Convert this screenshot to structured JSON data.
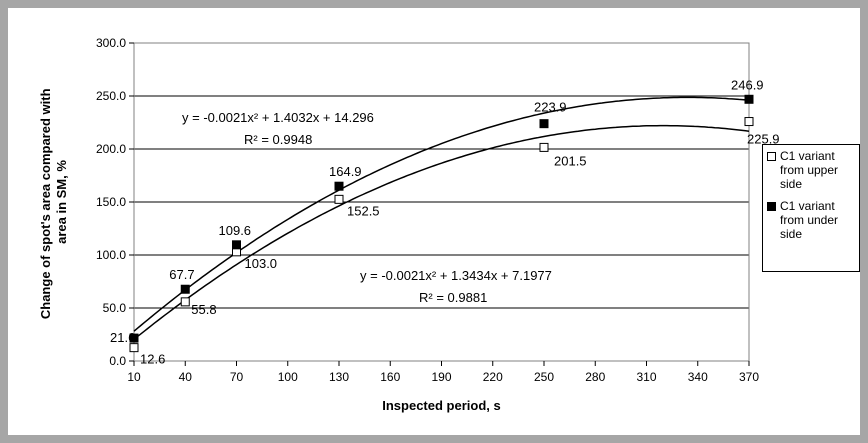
{
  "chart_data": {
    "type": "scatter",
    "xlabel": "Inspected period, s",
    "ylabel": "Change of spot's area compared with area in SM, %",
    "xlim": [
      10,
      370
    ],
    "ylim": [
      0,
      300
    ],
    "x_ticks": [
      "10",
      "40",
      "70",
      "100",
      "130",
      "160",
      "190",
      "220",
      "250",
      "280",
      "310",
      "340",
      "370"
    ],
    "y_ticks": [
      "0.0",
      "50.0",
      "100.0",
      "150.0",
      "200.0",
      "250.0",
      "300.0"
    ],
    "grid": "horizontal",
    "legend_position": "right",
    "series": [
      {
        "name": "C1 variant from upper side",
        "marker": "open-square",
        "color": "#000000",
        "x": [
          10,
          40,
          70,
          130,
          250,
          370
        ],
        "y": [
          12.6,
          55.8,
          103.0,
          152.5,
          201.5,
          225.9
        ],
        "labels": [
          "12.6",
          "55.8",
          "103.0",
          "152.5",
          "201.5",
          "225.9"
        ],
        "trendline": {
          "a": -0.0021,
          "b": 1.3434,
          "c": 7.1977,
          "equation": "y = -0.0021x² + 1.3434x + 7.1977",
          "r2": "R² = 0.9881"
        }
      },
      {
        "name": "C1 variant from under side",
        "marker": "filled-square",
        "color": "#000000",
        "x": [
          10,
          40,
          70,
          130,
          250,
          370
        ],
        "y": [
          21.6,
          67.7,
          109.6,
          164.9,
          223.9,
          246.9
        ],
        "labels": [
          "21.6",
          "67.7",
          "109.6",
          "164.9",
          "223.9",
          "246.9"
        ],
        "trendline": {
          "a": -0.0021,
          "b": 1.4032,
          "c": 14.296,
          "equation": "y = -0.0021x² + 1.4032x + 14.296",
          "r2": "R² = 0.9948"
        }
      }
    ],
    "legend": [
      "C1 variant from upper side",
      "C1 variant from under side"
    ]
  }
}
